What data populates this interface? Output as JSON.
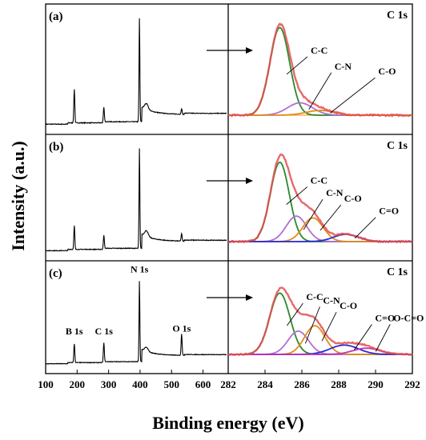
{
  "chart_data": {
    "type": "line",
    "xlabel": "Binding energy (eV)",
    "ylabel": "Intensity (a.u.)",
    "survey_axis": {
      "range": [
        100,
        680
      ],
      "ticks": [
        100,
        200,
        300,
        400,
        500,
        600
      ]
    },
    "hr_axis": {
      "range": [
        282,
        292
      ],
      "ticks": [
        282,
        284,
        286,
        288,
        290,
        292
      ],
      "reversed": false
    },
    "panels": [
      {
        "label": "(a)",
        "hr_title": "C 1s",
        "survey_peaks": [
          {
            "name": "B 1s",
            "x": 191,
            "y": 0.3,
            "show_label": false
          },
          {
            "name": "C 1s",
            "x": 285,
            "y": 0.13,
            "show_label": false
          },
          {
            "name": "N 1s",
            "x": 398,
            "y": 0.93,
            "show_label": false
          },
          {
            "name": "O 1s",
            "x": 532,
            "y": 0.05,
            "show_label": false
          }
        ],
        "components": [
          {
            "name": "C-C",
            "center": 284.8,
            "height": 0.92,
            "fwhm": 1.25,
            "color": "#2a8a2a"
          },
          {
            "name": "C-N",
            "center": 285.9,
            "height": 0.13,
            "fwhm": 1.6,
            "color": "#b070d0"
          },
          {
            "name": "C-O",
            "center": 287.0,
            "height": 0.05,
            "fwhm": 1.8,
            "color": "#e08c1a"
          }
        ],
        "envelope_color": "#e05050",
        "baseline_color": "#f0a040"
      },
      {
        "label": "(b)",
        "hr_title": "C 1s",
        "survey_peaks": [
          {
            "name": "B 1s",
            "x": 191,
            "y": 0.22,
            "show_label": false
          },
          {
            "name": "C 1s",
            "x": 285,
            "y": 0.12,
            "show_label": false
          },
          {
            "name": "N 1s",
            "x": 398,
            "y": 0.93,
            "show_label": false
          },
          {
            "name": "O 1s",
            "x": 532,
            "y": 0.07,
            "show_label": false
          }
        ],
        "components": [
          {
            "name": "C-C",
            "center": 284.8,
            "height": 0.87,
            "fwhm": 1.2,
            "color": "#2a8a2a"
          },
          {
            "name": "C-N",
            "center": 285.7,
            "height": 0.28,
            "fwhm": 1.3,
            "color": "#b070d0"
          },
          {
            "name": "C-O",
            "center": 286.6,
            "height": 0.26,
            "fwhm": 1.3,
            "color": "#e08c1a"
          },
          {
            "name": "C=O",
            "center": 288.4,
            "height": 0.08,
            "fwhm": 1.6,
            "color": "#2a2ad0"
          }
        ],
        "envelope_color": "#e05050",
        "baseline_color": "#2a2ad0"
      },
      {
        "label": "(c)",
        "hr_title": "C 1s",
        "survey_peaks": [
          {
            "name": "B 1s",
            "x": 191,
            "y": 0.2,
            "show_label": true
          },
          {
            "name": "C 1s",
            "x": 285,
            "y": 0.2,
            "show_label": true
          },
          {
            "name": "N 1s",
            "x": 398,
            "y": 0.86,
            "show_label": true
          },
          {
            "name": "O 1s",
            "x": 532,
            "y": 0.23,
            "show_label": true
          }
        ],
        "components": [
          {
            "name": "C-C",
            "center": 284.8,
            "height": 0.79,
            "fwhm": 1.3,
            "color": "#2a8a2a"
          },
          {
            "name": "C-N",
            "center": 285.8,
            "height": 0.3,
            "fwhm": 1.3,
            "color": "#b070d0"
          },
          {
            "name": "C-O",
            "center": 286.7,
            "height": 0.37,
            "fwhm": 1.3,
            "color": "#e08c1a"
          },
          {
            "name": "C=O",
            "center": 288.3,
            "height": 0.12,
            "fwhm": 1.8,
            "color": "#2a2ad0"
          },
          {
            "name": "O-C=O",
            "center": 289.5,
            "height": 0.08,
            "fwhm": 1.7,
            "color": "#c030c0"
          }
        ],
        "envelope_color": "#e05050",
        "baseline_color": "#e040e0"
      }
    ]
  }
}
